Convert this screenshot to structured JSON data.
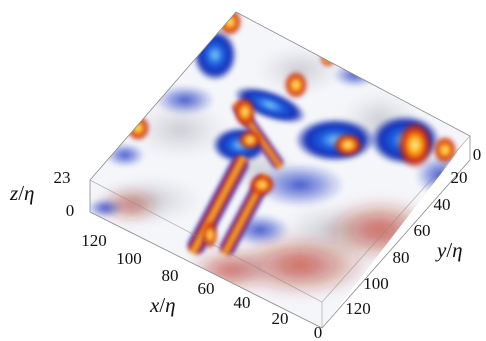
{
  "figure": {
    "axes": {
      "x": {
        "label_var": "x",
        "label_scale": "η",
        "ticks": [
          "120",
          "100",
          "80",
          "60",
          "40",
          "20",
          "0"
        ]
      },
      "y": {
        "label_var": "y",
        "label_scale": "η",
        "ticks": [
          "0",
          "20",
          "40",
          "60",
          "80",
          "100",
          "120"
        ]
      },
      "z": {
        "label_var": "z",
        "label_scale": "η",
        "ticks": [
          "23",
          "0"
        ]
      }
    },
    "colors": {
      "positive": "#c81e0a",
      "positive_core": "#ffd23a",
      "negative": "#1631c4",
      "negative_core": "#58b7ff",
      "background": "#ffffff",
      "box_edge": "#888888"
    },
    "visualization": "3D volume rendering of a turbulent field in a slab-shaped box; red/yellow and blue/cyan blobs for opposite signs"
  }
}
